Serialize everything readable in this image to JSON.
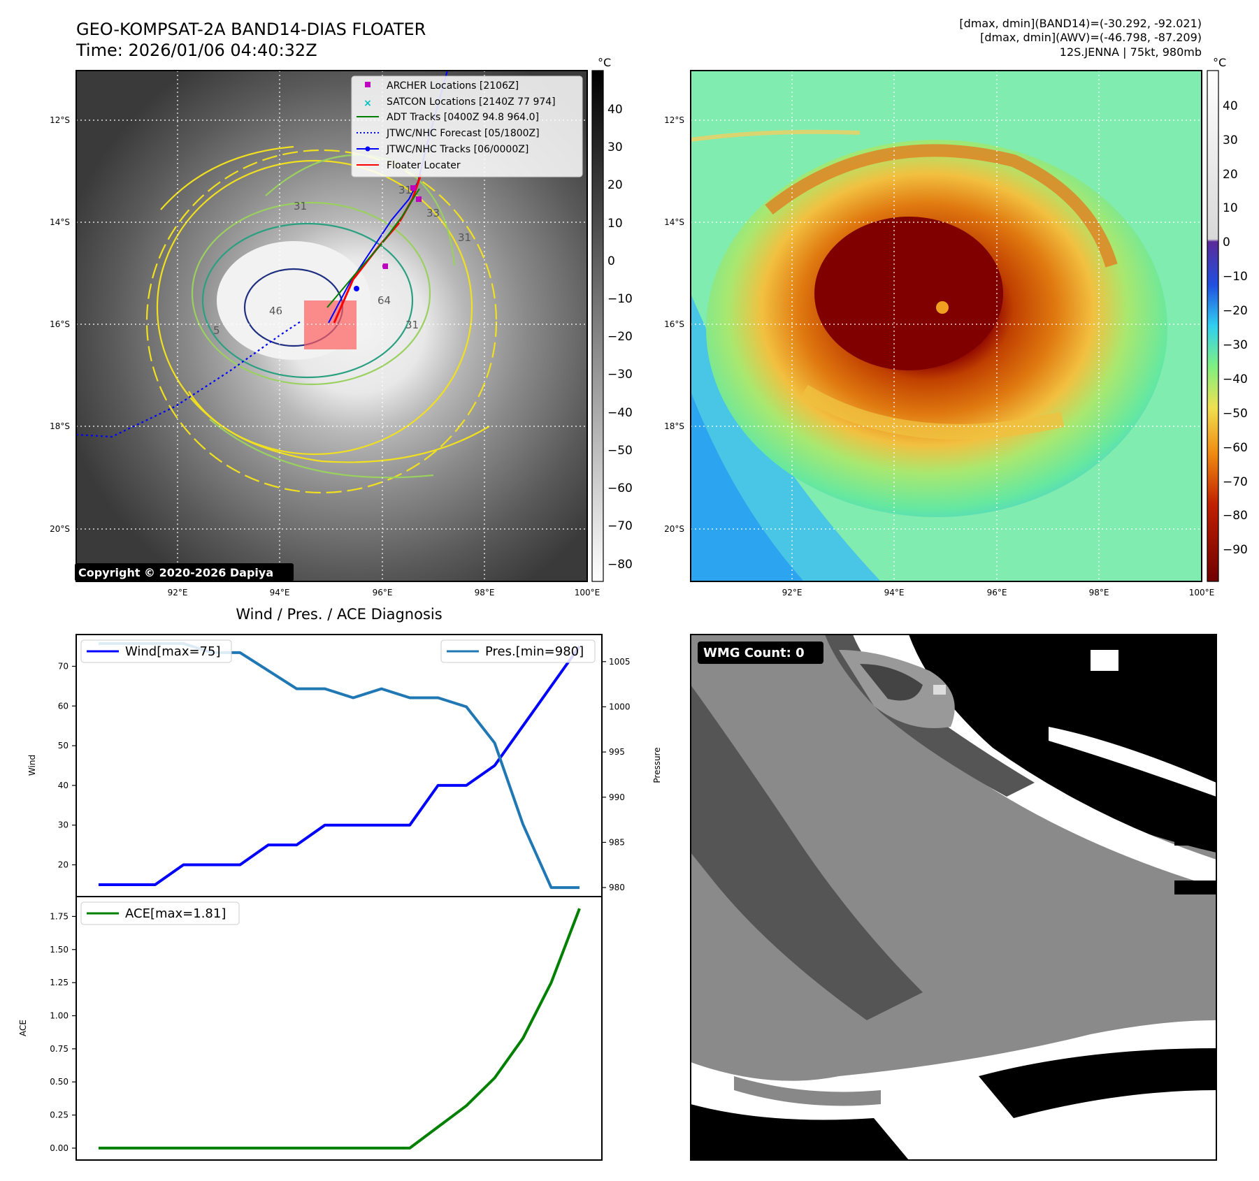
{
  "header": {
    "title_line1": "GEO-KOMPSAT-2A BAND14-DIAS FLOATER",
    "title_line2": "Time: 2026/01/06 04:40:32Z",
    "info_line1": "[dmax, dmin](BAND14)=(-30.292, -92.021)",
    "info_line2": "[dmax, dmin](AWV)=(-46.798, -87.209)",
    "info_line3": "12S.JENNA | 75kt, 980mb"
  },
  "maps": {
    "lat_labels": [
      "12°S",
      "14°S",
      "16°S",
      "18°S",
      "20°S"
    ],
    "lon_labels": [
      "92°E",
      "94°E",
      "96°E",
      "98°E",
      "100°E"
    ],
    "copyright": "Copyright © 2020-2026 Dapiya",
    "unit": "°C",
    "gray_colorbar_ticks": [
      "40",
      "30",
      "20",
      "10",
      "0",
      "−10",
      "−20",
      "−30",
      "−40",
      "−50",
      "−60",
      "−70",
      "−80"
    ],
    "color_colorbar_ticks": [
      "40",
      "30",
      "20",
      "10",
      "0",
      "−10",
      "−20",
      "−30",
      "−40",
      "−50",
      "−60",
      "−70",
      "−80",
      "−90"
    ],
    "contour_labels": [
      "31",
      "5",
      "31",
      "64",
      "46",
      "31",
      "31",
      "33"
    ],
    "legend": [
      {
        "label": "ARCHER Locations [2106Z]",
        "color": "#c000c0"
      },
      {
        "label": "SATCON Locations [2140Z 77 974]",
        "color": "#00c0c0"
      },
      {
        "label": "ADT Tracks [0400Z 94.8 964.0]",
        "color": "#007f00"
      },
      {
        "label": "JTWC/NHC Forecast [05/1800Z]",
        "color": "#0000ff"
      },
      {
        "label": "JTWC/NHC Tracks [06/0000Z]",
        "color": "#0000ff"
      },
      {
        "label": "Floater Locater",
        "color": "#ff0000"
      }
    ]
  },
  "diag": {
    "title": "Wind / Pres. / ACE Diagnosis",
    "wind_ylabel": "Wind",
    "pres_ylabel": "Pressure",
    "ace_ylabel": "ACE",
    "wind_legend": "Wind[max=75]",
    "pres_legend": "Pres.[min=980]",
    "ace_legend": "ACE[max=1.81]",
    "wind_ticks": [
      "20",
      "30",
      "40",
      "50",
      "60",
      "70"
    ],
    "pres_ticks": [
      "980",
      "985",
      "990",
      "995",
      "1000",
      "1005"
    ],
    "ace_ticks": [
      "0.00",
      "0.25",
      "0.50",
      "0.75",
      "1.00",
      "1.25",
      "1.50",
      "1.75"
    ]
  },
  "wmg": {
    "label": "WMG Count: 0"
  },
  "chart_data": [
    {
      "type": "line",
      "title": "Wind / Pres. / ACE Diagnosis",
      "ylabel": "Wind",
      "ylim": [
        12,
        78
      ],
      "x": [
        0,
        1,
        2,
        3,
        4,
        5,
        6,
        7,
        8,
        9,
        10,
        11,
        12,
        13,
        14,
        15,
        16,
        17
      ],
      "series": [
        {
          "name": "Wind[max=75]",
          "color": "#0000ff",
          "values": [
            15,
            15,
            15,
            20,
            20,
            20,
            25,
            25,
            30,
            30,
            30,
            30,
            40,
            40,
            45,
            55,
            65,
            75
          ]
        }
      ]
    },
    {
      "type": "line",
      "ylabel": "Pressure",
      "ylim": [
        979,
        1008
      ],
      "x": [
        0,
        1,
        2,
        3,
        4,
        5,
        6,
        7,
        8,
        9,
        10,
        11,
        12,
        13,
        14,
        15,
        16,
        17
      ],
      "series": [
        {
          "name": "Pres.[min=980]",
          "color": "#1f77b4",
          "values": [
            1007,
            1007,
            1007,
            1007,
            1006,
            1006,
            1004,
            1002,
            1002,
            1001,
            1002,
            1001,
            1001,
            1000,
            996,
            987,
            980,
            980
          ]
        }
      ]
    },
    {
      "type": "line",
      "ylabel": "ACE",
      "ylim": [
        -0.09,
        1.9
      ],
      "x": [
        0,
        1,
        2,
        3,
        4,
        5,
        6,
        7,
        8,
        9,
        10,
        11,
        12,
        13,
        14,
        15,
        16,
        17
      ],
      "series": [
        {
          "name": "ACE[max=1.81]",
          "color": "#008000",
          "values": [
            0,
            0,
            0,
            0,
            0,
            0,
            0,
            0,
            0,
            0,
            0,
            0,
            0.16,
            0.32,
            0.53,
            0.83,
            1.25,
            1.81
          ]
        }
      ]
    }
  ]
}
